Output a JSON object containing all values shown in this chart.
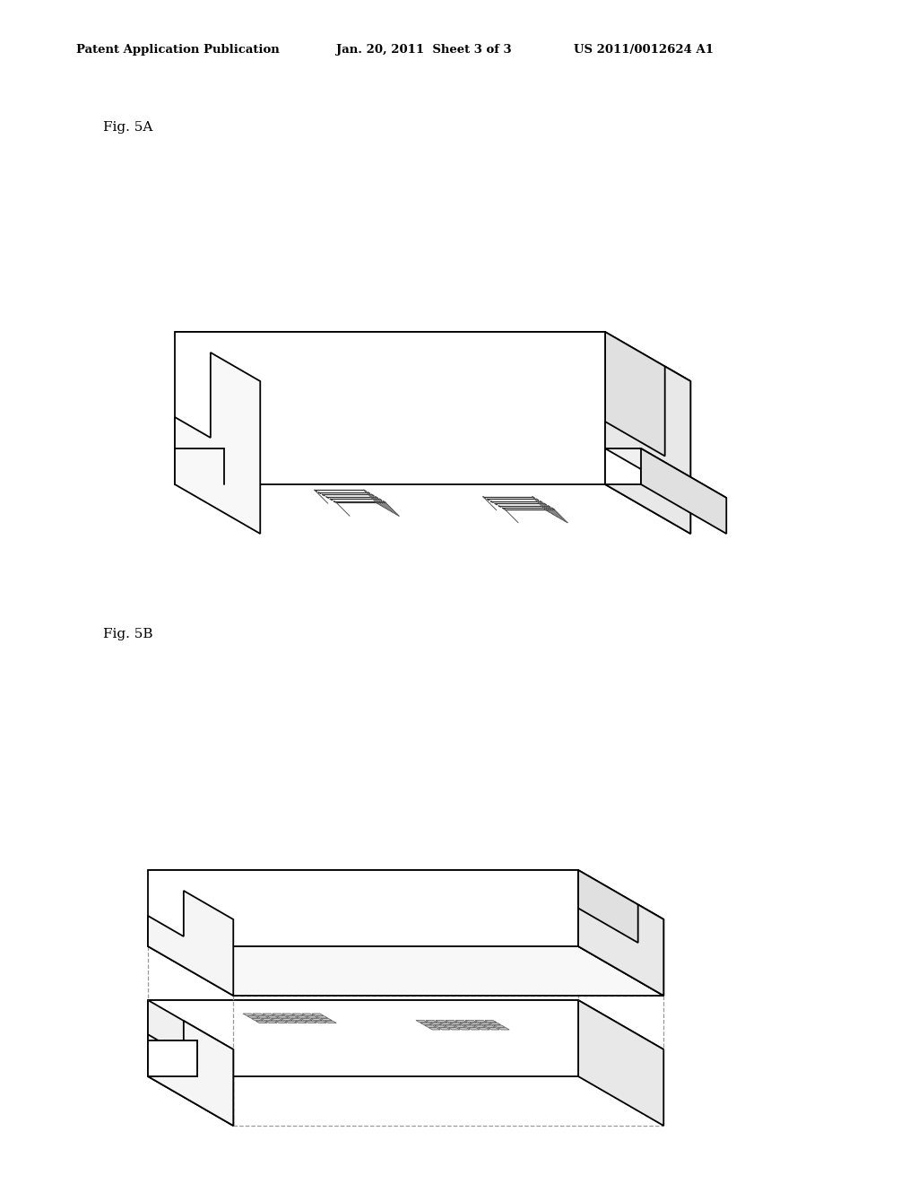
{
  "title_left": "Patent Application Publication",
  "title_mid": "Jan. 20, 2011  Sheet 3 of 3",
  "title_right": "US 2011/0012624 A1",
  "fig5a_label": "Fig. 5A",
  "fig5b_label": "Fig. 5B",
  "background": "#ffffff",
  "line_color": "#000000",
  "dashed_color": "#999999",
  "shade_right": "#e8e8e8",
  "shade_top": "#f5f5f5"
}
